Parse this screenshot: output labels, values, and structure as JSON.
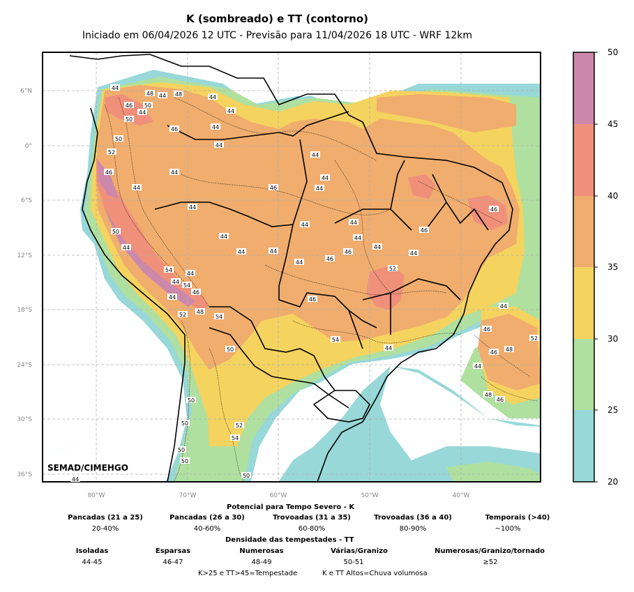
{
  "title": "K (sombreado) e TT (contorno)",
  "subtitle": "Iniciado em 06/04/2026 12 UTC - Previsão para 11/04/2026 18 UTC - WRF 12km",
  "watermark": "SEMAD/CIMEHGO",
  "lat_labels": [
    "6°N",
    "0°",
    "6°S",
    "12°S",
    "18°S",
    "24°S",
    "30°S",
    "36°S"
  ],
  "lon_labels": [
    "80°W",
    "70°W",
    "60°W",
    "50°W",
    "40°W"
  ],
  "colorbar": {
    "ticks": [
      "50",
      "45",
      "40",
      "35",
      "30",
      "25",
      "20"
    ],
    "colors": [
      "#cc88aa",
      "#f0907a",
      "#f0ad6e",
      "#f5d35f",
      "#b0e0a0",
      "#98d8d8"
    ]
  },
  "contour_labels": [
    "44",
    "48",
    "46",
    "44",
    "48",
    "50",
    "44",
    "50",
    "44",
    "44",
    "46",
    "44",
    "44",
    "50",
    "52",
    "46",
    "44",
    "44",
    "44",
    "44",
    "44",
    "44",
    "46",
    "44",
    "44",
    "44",
    "44",
    "44",
    "44",
    "46",
    "44",
    "46",
    "44",
    "50",
    "44",
    "54",
    "44",
    "44",
    "46",
    "44",
    "54",
    "48",
    "54",
    "52",
    "50",
    "44",
    "46",
    "46",
    "52",
    "54",
    "44",
    "44",
    "46",
    "46",
    "48",
    "44",
    "46",
    "50",
    "48",
    "46",
    "50",
    "50",
    "52",
    "54",
    "52",
    "50",
    "50",
    "44"
  ],
  "legend": {
    "k_header": "Potencial para Tempo Severo - K",
    "k_categories": [
      {
        "label": "Pancadas (21 a 25)",
        "value": "20-40%"
      },
      {
        "label": "Pancadas (26 a 30)",
        "value": "40-60%"
      },
      {
        "label": "Trovoadas (31 a 35)",
        "value": "60-80%"
      },
      {
        "label": "Trovoadas (36 a 40)",
        "value": "80-90%"
      },
      {
        "label": "Temporais (>40)",
        "value": "~100%"
      }
    ],
    "tt_header": "Densidade das tempestades - TT",
    "tt_categories": [
      {
        "label": "Isoladas",
        "value": "44-45"
      },
      {
        "label": "Esparsas",
        "value": "46-47"
      },
      {
        "label": "Numerosas",
        "value": "48-49"
      },
      {
        "label": "Várias/Granizo",
        "value": "50-51"
      },
      {
        "label": "Numerosas/Granizo/tornado",
        "value": "≥52"
      }
    ],
    "footer_left": "K>25 e TT>45=Tempestade",
    "footer_right": "K e TT Altos=Chuva volumosa"
  }
}
